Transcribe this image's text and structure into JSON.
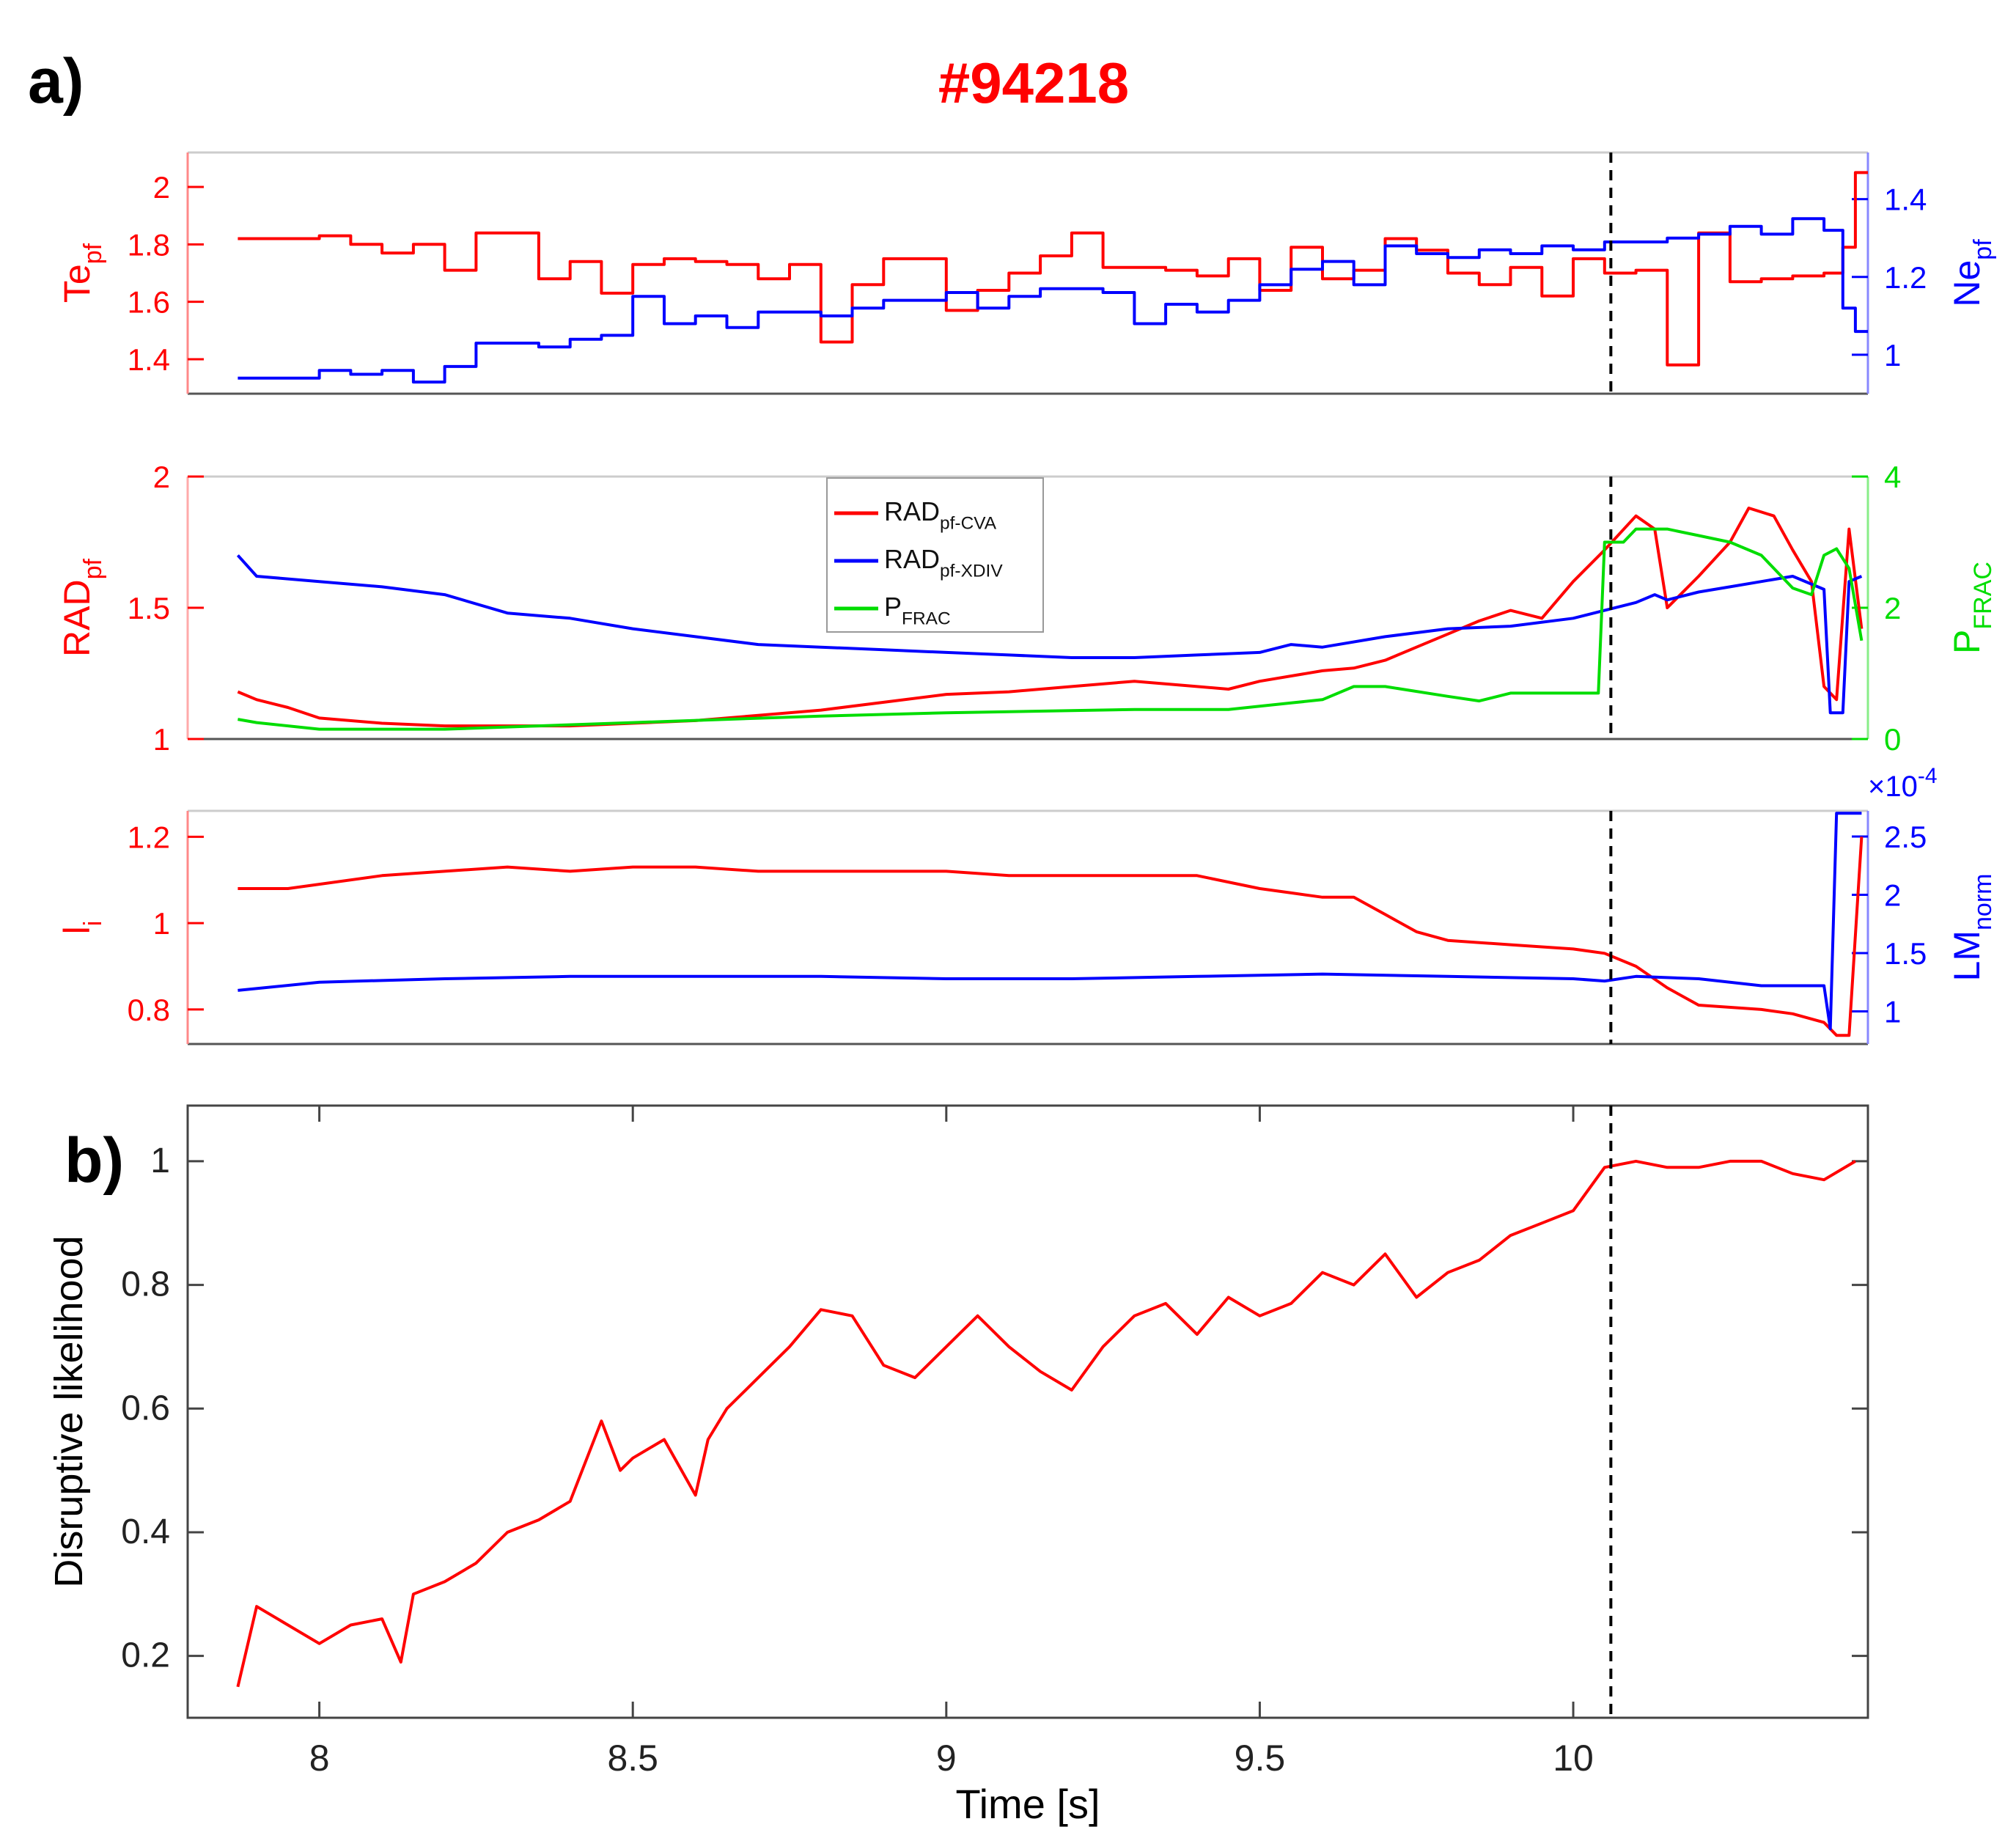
{
  "figure": {
    "panel_a_label": "a)",
    "panel_b_label": "b)",
    "shot_title": "#94218",
    "title_color": "#ff0000"
  },
  "colors": {
    "red": "#ff0000",
    "blue": "#0000ff",
    "green": "#00dd00",
    "axis": "#333333"
  },
  "chart_data": [
    {
      "id": "te-ne",
      "type": "line",
      "step": true,
      "xlim": [
        7.79,
        10.47
      ],
      "ylabel_left": {
        "base": "Te",
        "sub": "pf"
      },
      "ylabel_right": {
        "base": "Ne",
        "sub": "pf"
      },
      "ylim_left": [
        1.28,
        2.12
      ],
      "ylim_right": [
        0.9,
        1.52
      ],
      "yticks_left": [
        1.4,
        1.6,
        1.8,
        2
      ],
      "yticks_right": [
        1,
        1.2,
        1.4
      ],
      "series": [
        {
          "axis": "left",
          "color": "#ff0000",
          "x": [
            7.87,
            8.0,
            8.05,
            8.1,
            8.15,
            8.2,
            8.25,
            8.3,
            8.35,
            8.4,
            8.45,
            8.5,
            8.55,
            8.6,
            8.65,
            8.7,
            8.75,
            8.8,
            8.85,
            8.9,
            8.95,
            9.0,
            9.05,
            9.1,
            9.15,
            9.2,
            9.25,
            9.3,
            9.35,
            9.4,
            9.45,
            9.5,
            9.55,
            9.6,
            9.65,
            9.7,
            9.75,
            9.8,
            9.85,
            9.9,
            9.95,
            10.0,
            10.05,
            10.1,
            10.15,
            10.2,
            10.25,
            10.3,
            10.35,
            10.4,
            10.43,
            10.45
          ],
          "y": [
            1.82,
            1.83,
            1.8,
            1.77,
            1.8,
            1.71,
            1.84,
            1.84,
            1.68,
            1.74,
            1.63,
            1.73,
            1.75,
            1.74,
            1.73,
            1.68,
            1.73,
            1.46,
            1.66,
            1.75,
            1.75,
            1.57,
            1.64,
            1.7,
            1.76,
            1.84,
            1.72,
            1.72,
            1.71,
            1.69,
            1.75,
            1.64,
            1.79,
            1.68,
            1.71,
            1.82,
            1.78,
            1.7,
            1.66,
            1.72,
            1.62,
            1.75,
            1.7,
            1.71,
            1.38,
            1.84,
            1.67,
            1.68,
            1.69,
            1.7,
            1.79,
            2.05
          ]
        },
        {
          "axis": "right",
          "color": "#0000ff",
          "x": [
            7.87,
            8.0,
            8.05,
            8.1,
            8.15,
            8.2,
            8.25,
            8.3,
            8.35,
            8.4,
            8.45,
            8.5,
            8.55,
            8.6,
            8.65,
            8.7,
            8.75,
            8.8,
            8.85,
            8.9,
            8.95,
            9.0,
            9.05,
            9.1,
            9.15,
            9.2,
            9.25,
            9.3,
            9.35,
            9.4,
            9.45,
            9.5,
            9.55,
            9.6,
            9.65,
            9.7,
            9.75,
            9.8,
            9.85,
            9.9,
            9.95,
            10.0,
            10.05,
            10.1,
            10.15,
            10.2,
            10.25,
            10.3,
            10.35,
            10.4,
            10.43,
            10.45
          ],
          "y": [
            0.94,
            0.96,
            0.95,
            0.96,
            0.93,
            0.97,
            1.03,
            1.03,
            1.02,
            1.04,
            1.05,
            1.15,
            1.08,
            1.1,
            1.07,
            1.11,
            1.11,
            1.1,
            1.12,
            1.14,
            1.14,
            1.16,
            1.12,
            1.15,
            1.17,
            1.17,
            1.16,
            1.08,
            1.13,
            1.11,
            1.14,
            1.18,
            1.22,
            1.24,
            1.18,
            1.28,
            1.26,
            1.25,
            1.27,
            1.26,
            1.28,
            1.27,
            1.29,
            1.29,
            1.3,
            1.31,
            1.33,
            1.31,
            1.35,
            1.32,
            1.12,
            1.06
          ]
        }
      ]
    },
    {
      "id": "rad",
      "type": "line",
      "xlim": [
        7.79,
        10.47
      ],
      "ylabel_left": {
        "base": "RAD",
        "sub": "pf"
      },
      "ylabel_right": {
        "base": "P",
        "sub": "FRAC"
      },
      "ylim_left": [
        1,
        2
      ],
      "ylim_right": [
        0,
        4
      ],
      "yticks_left": [
        1,
        1.5,
        2
      ],
      "yticks_right": [
        0,
        2,
        4
      ],
      "legend": [
        {
          "base": "RAD",
          "sub": "pf-CVA",
          "color": "#ff0000"
        },
        {
          "base": "RAD",
          "sub": "pf-XDIV",
          "color": "#0000ff"
        },
        {
          "base": "P",
          "sub": "FRAC",
          "color": "#00dd00"
        }
      ],
      "series": [
        {
          "axis": "left",
          "color": "#ff0000",
          "name": "RAD_pf-CVA",
          "x": [
            7.87,
            7.9,
            7.95,
            8.0,
            8.1,
            8.2,
            8.3,
            8.4,
            8.5,
            8.6,
            8.7,
            8.8,
            8.9,
            9.0,
            9.1,
            9.2,
            9.3,
            9.4,
            9.45,
            9.5,
            9.6,
            9.65,
            9.7,
            9.75,
            9.8,
            9.85,
            9.9,
            9.95,
            10.0,
            10.05,
            10.1,
            10.13,
            10.15,
            10.2,
            10.25,
            10.28,
            10.32,
            10.35,
            10.38,
            10.4,
            10.42,
            10.44,
            10.46
          ],
          "y": [
            1.18,
            1.15,
            1.12,
            1.08,
            1.06,
            1.05,
            1.05,
            1.05,
            1.06,
            1.07,
            1.09,
            1.11,
            1.14,
            1.17,
            1.18,
            1.2,
            1.22,
            1.2,
            1.19,
            1.22,
            1.26,
            1.27,
            1.3,
            1.35,
            1.4,
            1.45,
            1.49,
            1.46,
            1.6,
            1.72,
            1.85,
            1.8,
            1.5,
            1.62,
            1.75,
            1.88,
            1.85,
            1.72,
            1.6,
            1.2,
            1.15,
            1.8,
            1.42
          ]
        },
        {
          "axis": "left",
          "color": "#0000ff",
          "name": "RAD_pf-XDIV",
          "x": [
            7.87,
            7.9,
            8.0,
            8.1,
            8.2,
            8.3,
            8.4,
            8.5,
            8.6,
            8.7,
            8.8,
            8.9,
            9.0,
            9.1,
            9.2,
            9.3,
            9.4,
            9.5,
            9.55,
            9.6,
            9.7,
            9.8,
            9.9,
            10.0,
            10.05,
            10.1,
            10.13,
            10.15,
            10.2,
            10.25,
            10.3,
            10.35,
            10.4,
            10.41,
            10.43,
            10.44,
            10.46
          ],
          "y": [
            1.7,
            1.62,
            1.6,
            1.58,
            1.55,
            1.48,
            1.46,
            1.42,
            1.39,
            1.36,
            1.35,
            1.34,
            1.33,
            1.32,
            1.31,
            1.31,
            1.32,
            1.33,
            1.36,
            1.35,
            1.39,
            1.42,
            1.43,
            1.46,
            1.49,
            1.52,
            1.55,
            1.53,
            1.56,
            1.58,
            1.6,
            1.62,
            1.57,
            1.1,
            1.1,
            1.6,
            1.62
          ]
        },
        {
          "axis": "right",
          "color": "#00dd00",
          "name": "P_FRAC",
          "x": [
            7.87,
            7.9,
            8.0,
            8.2,
            8.5,
            8.8,
            9.0,
            9.3,
            9.45,
            9.5,
            9.55,
            9.6,
            9.65,
            9.7,
            9.8,
            9.85,
            9.9,
            10.0,
            10.04,
            10.05,
            10.08,
            10.1,
            10.15,
            10.2,
            10.25,
            10.3,
            10.35,
            10.38,
            10.4,
            10.42,
            10.44,
            10.46
          ],
          "y": [
            0.3,
            0.25,
            0.15,
            0.15,
            0.25,
            0.35,
            0.4,
            0.45,
            0.45,
            0.5,
            0.55,
            0.6,
            0.8,
            0.8,
            0.65,
            0.58,
            0.7,
            0.7,
            0.7,
            3.0,
            3.0,
            3.2,
            3.2,
            3.1,
            3.0,
            2.8,
            2.3,
            2.2,
            2.8,
            2.9,
            2.6,
            1.5
          ]
        }
      ]
    },
    {
      "id": "li-lm",
      "type": "line",
      "xlim": [
        7.79,
        10.47
      ],
      "ylabel_left": {
        "base": "l",
        "sub": "i"
      },
      "ylabel_right": {
        "base": "LM",
        "sub": "norm"
      },
      "ylim_left": [
        0.72,
        1.26
      ],
      "ylim_right": [
        0.72,
        2.72
      ],
      "yticks_left": [
        0.8,
        1,
        1.2
      ],
      "yticks_right": [
        1,
        1.5,
        2,
        2.5
      ],
      "right_exponent": "×10",
      "right_exponent_power": "-4",
      "series": [
        {
          "axis": "left",
          "color": "#ff0000",
          "x": [
            7.87,
            7.95,
            8.1,
            8.2,
            8.3,
            8.4,
            8.5,
            8.6,
            8.7,
            8.8,
            8.9,
            9.0,
            9.1,
            9.2,
            9.3,
            9.4,
            9.5,
            9.55,
            9.6,
            9.65,
            9.7,
            9.75,
            9.8,
            9.9,
            10.0,
            10.05,
            10.1,
            10.15,
            10.2,
            10.3,
            10.35,
            10.4,
            10.42,
            10.44,
            10.46
          ],
          "y": [
            1.08,
            1.08,
            1.11,
            1.12,
            1.13,
            1.12,
            1.13,
            1.13,
            1.12,
            1.12,
            1.12,
            1.12,
            1.11,
            1.11,
            1.11,
            1.11,
            1.08,
            1.07,
            1.06,
            1.06,
            1.02,
            0.98,
            0.96,
            0.95,
            0.94,
            0.93,
            0.9,
            0.85,
            0.81,
            0.8,
            0.79,
            0.77,
            0.74,
            0.74,
            1.2
          ]
        },
        {
          "axis": "right",
          "color": "#0000ff",
          "x": [
            7.87,
            8.0,
            8.2,
            8.4,
            8.6,
            8.8,
            9.0,
            9.2,
            9.4,
            9.6,
            9.8,
            10.0,
            10.05,
            10.1,
            10.2,
            10.3,
            10.4,
            10.41,
            10.42,
            10.44,
            10.46
          ],
          "y": [
            1.18,
            1.25,
            1.28,
            1.3,
            1.3,
            1.3,
            1.28,
            1.28,
            1.3,
            1.32,
            1.3,
            1.28,
            1.26,
            1.3,
            1.28,
            1.22,
            1.22,
            0.85,
            2.7,
            2.7,
            2.7
          ]
        }
      ]
    },
    {
      "id": "dl",
      "type": "line",
      "xlim": [
        7.79,
        10.47
      ],
      "ylabel": "Disruptive likelihood",
      "xlabel": "Time [s]",
      "ylim": [
        0.1,
        1.09
      ],
      "yticks": [
        0.2,
        0.4,
        0.6,
        0.8,
        1
      ],
      "xticks": [
        8,
        8.5,
        9,
        9.5,
        10
      ],
      "series": [
        {
          "color": "#ff0000",
          "x": [
            7.87,
            7.9,
            7.95,
            8.0,
            8.05,
            8.1,
            8.13,
            8.15,
            8.2,
            8.25,
            8.3,
            8.35,
            8.4,
            8.45,
            8.48,
            8.5,
            8.55,
            8.6,
            8.62,
            8.65,
            8.7,
            8.75,
            8.8,
            8.85,
            8.9,
            8.95,
            9.0,
            9.05,
            9.1,
            9.15,
            9.2,
            9.25,
            9.3,
            9.35,
            9.4,
            9.45,
            9.5,
            9.55,
            9.6,
            9.65,
            9.7,
            9.75,
            9.8,
            9.85,
            9.9,
            9.95,
            10.0,
            10.05,
            10.1,
            10.15,
            10.2,
            10.25,
            10.3,
            10.35,
            10.4,
            10.45
          ],
          "y": [
            0.15,
            0.28,
            0.25,
            0.22,
            0.25,
            0.26,
            0.19,
            0.3,
            0.32,
            0.35,
            0.4,
            0.42,
            0.45,
            0.58,
            0.5,
            0.52,
            0.55,
            0.46,
            0.55,
            0.6,
            0.65,
            0.7,
            0.76,
            0.75,
            0.67,
            0.65,
            0.7,
            0.75,
            0.7,
            0.66,
            0.63,
            0.7,
            0.75,
            0.77,
            0.72,
            0.78,
            0.75,
            0.77,
            0.82,
            0.8,
            0.85,
            0.78,
            0.82,
            0.84,
            0.88,
            0.9,
            0.92,
            0.99,
            1.0,
            0.99,
            0.99,
            1.0,
            1.0,
            0.98,
            0.97,
            1.0
          ]
        }
      ]
    }
  ],
  "event_line_x": 10.06
}
